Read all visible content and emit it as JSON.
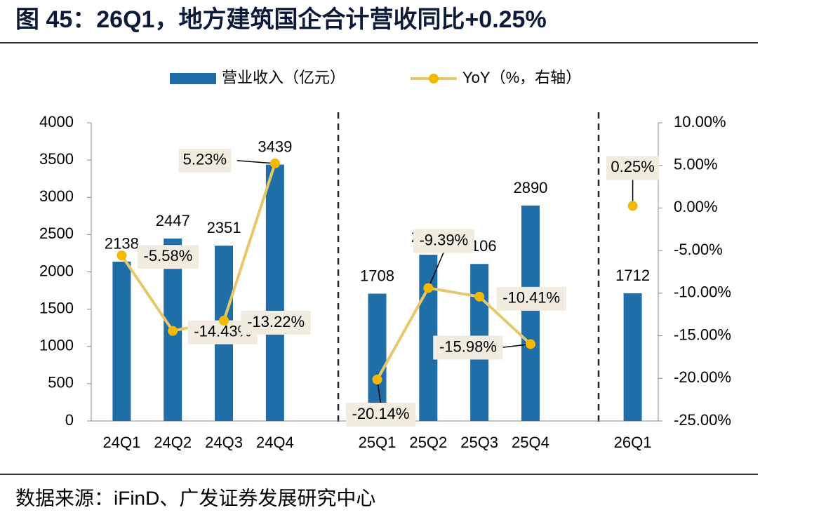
{
  "chart_data": {
    "type": "bar_line",
    "title": "图 45：26Q1，地方建筑国企合计营收同比+0.25%",
    "source": "数据来源：iFinD、广发证券发展研究中心",
    "categories": [
      "24Q1",
      "24Q2",
      "24Q3",
      "24Q4",
      null,
      "25Q1",
      "25Q2",
      "25Q3",
      "25Q4",
      null,
      "26Q1"
    ],
    "series": [
      {
        "name": "营业收入（亿元）",
        "type": "bar",
        "color": "#1f6ea7",
        "values": [
          2138,
          2447,
          2351,
          3439,
          null,
          1708,
          2230,
          2106,
          2890,
          null,
          1712
        ]
      },
      {
        "name": "YoY（%，右轴）",
        "type": "line",
        "axis": "y2",
        "color": "#e6c76a",
        "marker_color": "#f5b800",
        "values": [
          -5.58,
          -14.43,
          -13.22,
          5.23,
          null,
          -20.14,
          -9.39,
          -10.41,
          -15.98,
          null,
          0.25
        ],
        "value_labels": [
          "-5.58%",
          "-14.43%",
          "-13.22%",
          "5.23%",
          null,
          "-20.14%",
          "-9.39%",
          "-10.41%",
          "-15.98%",
          null,
          "0.25%"
        ]
      }
    ],
    "ylim": [
      0,
      4000
    ],
    "yticks": [
      0,
      500,
      1000,
      1500,
      2000,
      2500,
      3000,
      3500,
      4000
    ],
    "y2lim": [
      -25,
      10
    ],
    "y2ticks": [
      {
        "value": -25,
        "label": "-25.00%"
      },
      {
        "value": -20,
        "label": "-20.00%"
      },
      {
        "value": -15,
        "label": "-15.00%"
      },
      {
        "value": -10,
        "label": "-10.00%"
      },
      {
        "value": -5,
        "label": "-5.00%"
      },
      {
        "value": 0,
        "label": "0.00%"
      },
      {
        "value": 5,
        "label": "5.00%"
      },
      {
        "value": 10,
        "label": "10.00%"
      }
    ],
    "legend": "top"
  }
}
